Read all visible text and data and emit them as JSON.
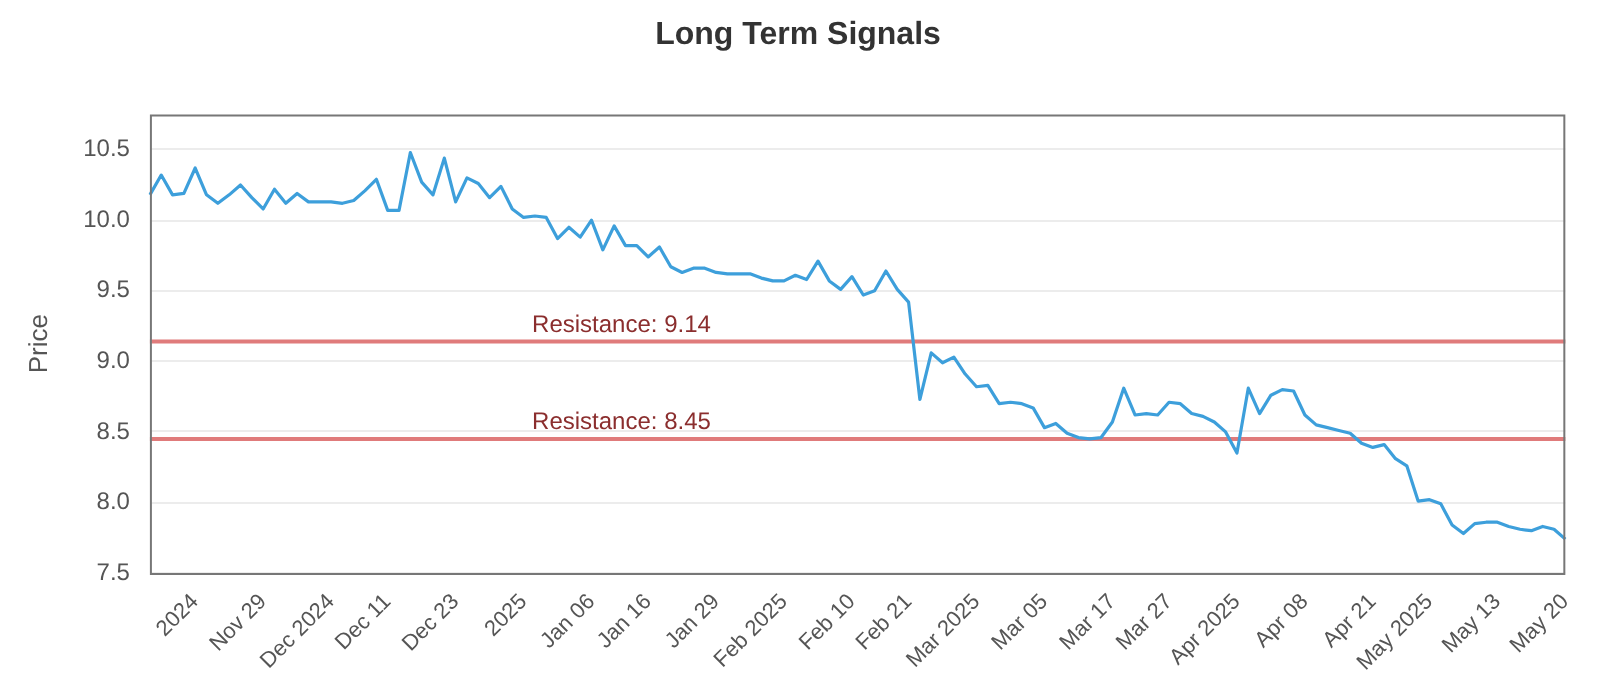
{
  "chart_data": {
    "type": "line",
    "title": "Long Term Signals",
    "ylabel": "Price",
    "categories": [
      null,
      null,
      null,
      null,
      "2024",
      null,
      null,
      null,
      null,
      null,
      "Nov 29",
      null,
      null,
      null,
      null,
      null,
      "Dec 2024",
      null,
      null,
      null,
      null,
      "Dec 11",
      null,
      null,
      null,
      null,
      null,
      "Dec 23",
      null,
      null,
      null,
      null,
      null,
      "2025",
      null,
      null,
      null,
      null,
      null,
      "Jan 06",
      null,
      null,
      null,
      null,
      "Jan 16",
      null,
      null,
      null,
      null,
      null,
      "Jan 29",
      null,
      null,
      null,
      null,
      null,
      "Feb 2025",
      null,
      null,
      null,
      null,
      null,
      "Feb 10",
      null,
      null,
      null,
      null,
      "Feb 21",
      null,
      null,
      null,
      null,
      null,
      "Mar 2025",
      null,
      null,
      null,
      null,
      null,
      "Mar 05",
      null,
      null,
      null,
      null,
      null,
      "Mar 17",
      null,
      null,
      null,
      null,
      "Mar 27",
      null,
      null,
      null,
      null,
      null,
      "Apr 2025",
      null,
      null,
      null,
      null,
      null,
      "Apr 08",
      null,
      null,
      null,
      null,
      null,
      "Apr 21",
      null,
      null,
      null,
      null,
      "May 2025",
      null,
      null,
      null,
      null,
      null,
      "May 13",
      null,
      null,
      null,
      null,
      null,
      "May 20"
    ],
    "values": [
      10.18,
      10.32,
      10.18,
      10.19,
      10.37,
      10.18,
      10.12,
      10.18,
      10.25,
      10.16,
      10.08,
      10.22,
      10.12,
      10.19,
      10.13,
      10.13,
      10.13,
      10.12,
      10.14,
      10.21,
      10.29,
      10.07,
      10.07,
      10.48,
      10.27,
      10.18,
      10.44,
      10.13,
      10.3,
      10.26,
      10.16,
      10.24,
      10.08,
      10.02,
      10.03,
      10.02,
      9.87,
      9.95,
      9.88,
      10.0,
      9.79,
      9.96,
      9.82,
      9.82,
      9.74,
      9.81,
      9.67,
      9.63,
      9.66,
      9.66,
      9.63,
      9.62,
      9.62,
      9.62,
      9.59,
      9.57,
      9.57,
      9.61,
      9.58,
      9.71,
      9.57,
      9.51,
      9.6,
      9.47,
      9.5,
      9.64,
      9.51,
      9.42,
      8.73,
      9.06,
      8.99,
      9.03,
      8.91,
      8.82,
      8.83,
      8.7,
      8.71,
      8.7,
      8.67,
      8.53,
      8.56,
      8.49,
      8.46,
      8.45,
      8.46,
      8.57,
      8.81,
      8.62,
      8.63,
      8.62,
      8.71,
      8.7,
      8.63,
      8.61,
      8.57,
      8.5,
      8.35,
      8.81,
      8.63,
      8.76,
      8.8,
      8.79,
      8.62,
      8.55,
      8.53,
      8.51,
      8.49,
      8.42,
      8.39,
      8.41,
      8.31,
      8.26,
      8.01,
      8.02,
      7.99,
      7.84,
      7.78,
      7.85,
      7.86,
      7.86,
      7.83,
      7.81,
      7.8,
      7.83,
      7.81,
      7.74
    ],
    "color": "#3d9fdb",
    "marker": "none",
    "line_style": "solid",
    "legend": false,
    "grid": "y",
    "ylim": [
      7.5,
      10.75
    ],
    "yticks": [
      7.5,
      {
        "value": 8,
        "label": "8.0"
      },
      8.5,
      {
        "value": 9,
        "label": "9.0"
      },
      9.5,
      {
        "value": 10,
        "label": "10.0"
      },
      10.5
    ],
    "ref_lines": [
      {
        "axis": "y",
        "value": 9.14,
        "label": "Resistance: 9.14",
        "color": "#e07b7b"
      },
      {
        "axis": "y",
        "value": 8.45,
        "label": "Resistance: 8.45",
        "color": "#e07b7b"
      }
    ]
  }
}
